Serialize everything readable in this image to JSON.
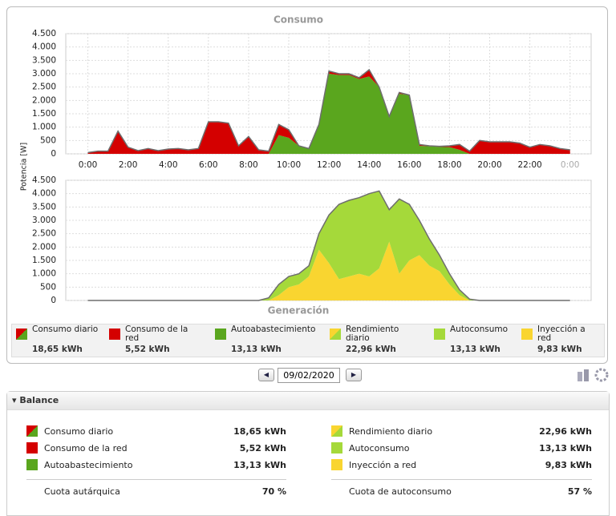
{
  "chart_data": [
    {
      "type": "area",
      "title": "Consumo",
      "ylabel": "Potencia [W]",
      "stacked": true,
      "grid": true,
      "x": [
        0,
        0.5,
        1,
        1.5,
        2,
        2.5,
        3,
        3.5,
        4,
        4.5,
        5,
        5.5,
        6,
        6.5,
        7,
        7.5,
        8,
        8.5,
        9,
        9.5,
        10,
        10.5,
        11,
        11.5,
        12,
        12.5,
        13,
        13.5,
        14,
        14.5,
        15,
        15.5,
        16,
        16.5,
        17,
        17.5,
        18,
        18.5,
        19,
        19.5,
        20,
        20.5,
        21,
        21.5,
        22,
        22.5,
        23,
        23.5,
        24
      ],
      "series": [
        {
          "color": "#5aa61e",
          "values": [
            0,
            0,
            0,
            0,
            0,
            0,
            0,
            0,
            0,
            0,
            0,
            0,
            0,
            0,
            0,
            0,
            0,
            0,
            0,
            700,
            600,
            300,
            200,
            1100,
            3000,
            2950,
            2950,
            2800,
            2900,
            2500,
            1400,
            2250,
            2200,
            300,
            280,
            260,
            250,
            150,
            0,
            0,
            0,
            0,
            0,
            0,
            0,
            0,
            0,
            0,
            0
          ]
        },
        {
          "color": "#d40000",
          "values": [
            50,
            100,
            100,
            850,
            250,
            120,
            200,
            120,
            180,
            200,
            150,
            200,
            1200,
            1200,
            1150,
            300,
            650,
            150,
            100,
            400,
            300,
            0,
            0,
            0,
            100,
            50,
            50,
            50,
            250,
            0,
            0,
            50,
            0,
            50,
            20,
            20,
            50,
            200,
            100,
            500,
            450,
            450,
            450,
            400,
            250,
            350,
            300,
            200,
            150
          ]
        }
      ],
      "xlim": [
        -1.1,
        25.05
      ],
      "xticks": [
        {
          "value": 0,
          "label": "0:00"
        },
        {
          "value": 2,
          "label": "2:00"
        },
        {
          "value": 4,
          "label": "4:00"
        },
        {
          "value": 6,
          "label": "6:00"
        },
        {
          "value": 8,
          "label": "8:00"
        },
        {
          "value": 10,
          "label": "10:00"
        },
        {
          "value": 12,
          "label": "12:00"
        },
        {
          "value": 14,
          "label": "14:00"
        },
        {
          "value": 16,
          "label": "16:00"
        },
        {
          "value": 18,
          "label": "18:00"
        },
        {
          "value": 20,
          "label": "20:00"
        },
        {
          "value": 22,
          "label": "22:00"
        },
        {
          "value": 24,
          "label": "0:00"
        }
      ],
      "ylim": [
        0,
        4500
      ],
      "yticks": [
        0,
        500,
        {
          "value": 1000,
          "label": "1.000"
        },
        {
          "value": 1500,
          "label": "1.500"
        },
        {
          "value": 2000,
          "label": "2.000"
        },
        {
          "value": 2500,
          "label": "2.500"
        },
        {
          "value": 3000,
          "label": "3.000"
        },
        {
          "value": 3500,
          "label": "3.500"
        },
        {
          "value": 4000,
          "label": "4.000"
        },
        {
          "value": 4500,
          "label": "4.500"
        }
      ]
    },
    {
      "type": "area",
      "title": "Generación",
      "stacked": true,
      "grid": true,
      "x": [
        0,
        0.5,
        1,
        1.5,
        2,
        2.5,
        3,
        3.5,
        4,
        4.5,
        5,
        5.5,
        6,
        6.5,
        7,
        7.5,
        8,
        8.5,
        9,
        9.5,
        10,
        10.5,
        11,
        11.5,
        12,
        12.5,
        13,
        13.5,
        14,
        14.5,
        15,
        15.5,
        16,
        16.5,
        17,
        17.5,
        18,
        18.5,
        19,
        19.5,
        20,
        20.5,
        21,
        21.5,
        22,
        22.5,
        23,
        23.5,
        24
      ],
      "series": [
        {
          "color": "#f9d530",
          "values": [
            0,
            0,
            0,
            0,
            0,
            0,
            0,
            0,
            0,
            0,
            0,
            0,
            0,
            0,
            0,
            0,
            0,
            0,
            0,
            200,
            500,
            600,
            900,
            1900,
            1400,
            800,
            900,
            1000,
            900,
            1200,
            2200,
            1000,
            1500,
            1700,
            1300,
            1100,
            600,
            200,
            0,
            0,
            0,
            0,
            0,
            0,
            0,
            0,
            0,
            0,
            0
          ]
        },
        {
          "color": "#a5d93a",
          "values": [
            0,
            0,
            0,
            0,
            0,
            0,
            0,
            0,
            0,
            0,
            0,
            0,
            0,
            0,
            0,
            0,
            0,
            0,
            100,
            400,
            400,
            400,
            400,
            600,
            1800,
            2800,
            2850,
            2850,
            3100,
            2900,
            1200,
            2800,
            2100,
            1300,
            1000,
            600,
            400,
            200,
            50,
            0,
            0,
            0,
            0,
            0,
            0,
            0,
            0,
            0,
            0
          ]
        }
      ],
      "xlim": [
        -1.1,
        25.05
      ],
      "ylim": [
        0,
        4500
      ],
      "yticks": [
        0,
        500,
        {
          "value": 1000,
          "label": "1.000"
        },
        {
          "value": 1500,
          "label": "1.500"
        },
        {
          "value": 2000,
          "label": "2.000"
        },
        {
          "value": 2500,
          "label": "2.500"
        },
        {
          "value": 3000,
          "label": "3.000"
        },
        {
          "value": 3500,
          "label": "3.500"
        },
        {
          "value": 4000,
          "label": "4.000"
        },
        {
          "value": 4500,
          "label": "4.500"
        }
      ]
    }
  ],
  "legend": [
    {
      "label": "Consumo diario",
      "value": "18,65 kWh"
    },
    {
      "label": "Consumo de la red",
      "value": "5,52 kWh"
    },
    {
      "label": "Autoabastecimiento",
      "value": "13,13 kWh"
    },
    {
      "label": "Rendimiento diario",
      "value": "22,96 kWh"
    },
    {
      "label": "Autoconsumo",
      "value": "13,13 kWh"
    },
    {
      "label": "Inyección a red",
      "value": "9,83 kWh"
    }
  ],
  "date": "09/02/2020",
  "balance": {
    "title": "Balance",
    "left": [
      {
        "label": "Consumo diario",
        "value": "18,65 kWh"
      },
      {
        "label": "Consumo de la red",
        "value": "5,52 kWh"
      },
      {
        "label": "Autoabastecimiento",
        "value": "13,13 kWh"
      }
    ],
    "right": [
      {
        "label": "Rendimiento diario",
        "value": "22,96 kWh"
      },
      {
        "label": "Autoconsumo",
        "value": "13,13 kWh"
      },
      {
        "label": "Inyección a red",
        "value": "9,83 kWh"
      }
    ],
    "quota_left": {
      "label": "Cuota autárquica",
      "value": "70 %"
    },
    "quota_right": {
      "label": "Cuota de autoconsumo",
      "value": "57 %"
    }
  }
}
